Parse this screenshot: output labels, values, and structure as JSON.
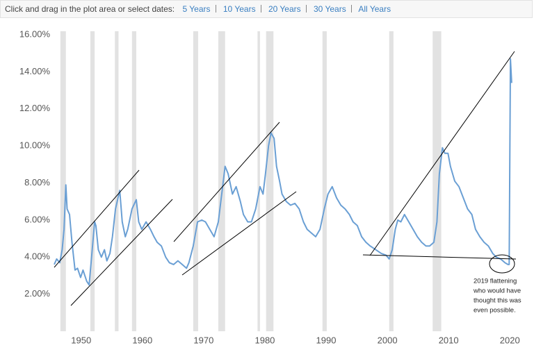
{
  "header": {
    "prompt": "Click and drag in the plot area or select dates:",
    "links": [
      "5 Years",
      "10 Years",
      "20 Years",
      "30 Years",
      "All Years"
    ]
  },
  "chart_data": {
    "type": "line",
    "color": "#6a9fd4",
    "x": [
      1945.6,
      1946.0,
      1946.5,
      1946.9,
      1947.2,
      1947.5,
      1947.7,
      1948.1,
      1948.5,
      1949.0,
      1949.4,
      1949.9,
      1950.3,
      1950.9,
      1951.3,
      1951.7,
      1952.2,
      1952.4,
      1952.8,
      1953.3,
      1953.8,
      1954.2,
      1954.7,
      1955.1,
      1955.6,
      1956.3,
      1956.7,
      1957.2,
      1957.6,
      1958.3,
      1959.0,
      1959.4,
      1959.9,
      1960.6,
      1961.3,
      1961.9,
      1962.4,
      1963.1,
      1963.8,
      1964.4,
      1965.1,
      1965.8,
      1966.5,
      1967.2,
      1967.6,
      1968.3,
      1969.0,
      1969.7,
      1970.3,
      1971.0,
      1971.7,
      1972.4,
      1973.1,
      1973.5,
      1974.0,
      1974.7,
      1975.3,
      1976.0,
      1976.5,
      1977.2,
      1977.8,
      1978.5,
      1979.2,
      1979.7,
      1980.1,
      1980.6,
      1981.0,
      1981.5,
      1981.9,
      1982.4,
      1982.8,
      1983.5,
      1984.2,
      1984.9,
      1985.6,
      1986.3,
      1986.9,
      1987.6,
      1988.3,
      1989.0,
      1989.7,
      1990.3,
      1991.0,
      1991.7,
      1992.4,
      1993.1,
      1993.8,
      1994.4,
      1995.1,
      1995.8,
      1996.5,
      1997.2,
      1998.1,
      1999.0,
      1999.8,
      2000.3,
      2000.8,
      2001.3,
      2001.7,
      2002.2,
      2002.8,
      2003.5,
      2004.2,
      2004.9,
      2005.6,
      2006.3,
      2006.9,
      2007.6,
      2008.1,
      2008.5,
      2009.0,
      2009.4,
      2009.9,
      2010.3,
      2011.0,
      2011.7,
      2012.4,
      2013.1,
      2013.8,
      2014.4,
      2015.1,
      2015.8,
      2016.5,
      2017.2,
      2017.8,
      2018.5,
      2019.2,
      2019.7,
      2019.9,
      2020.1,
      2020.3
    ],
    "values": [
      3.6,
      3.9,
      3.7,
      4.4,
      5.5,
      7.9,
      6.6,
      6.3,
      4.8,
      3.3,
      3.4,
      2.9,
      3.3,
      2.7,
      2.5,
      4.0,
      5.9,
      5.7,
      4.4,
      4.0,
      4.4,
      3.8,
      4.2,
      5.1,
      6.6,
      7.6,
      5.9,
      5.1,
      5.5,
      6.6,
      7.1,
      5.9,
      5.5,
      5.9,
      5.5,
      5.1,
      4.8,
      4.6,
      4.0,
      3.7,
      3.6,
      3.8,
      3.6,
      3.4,
      3.7,
      4.6,
      5.9,
      6.0,
      5.9,
      5.5,
      5.1,
      5.9,
      7.8,
      8.9,
      8.5,
      7.4,
      7.8,
      7.0,
      6.3,
      5.9,
      5.9,
      6.6,
      7.8,
      7.4,
      8.5,
      10.0,
      10.7,
      10.4,
      8.9,
      8.1,
      7.4,
      7.0,
      6.8,
      6.9,
      6.6,
      5.9,
      5.5,
      5.3,
      5.1,
      5.5,
      6.6,
      7.4,
      7.8,
      7.2,
      6.8,
      6.6,
      6.3,
      5.9,
      5.7,
      5.1,
      4.8,
      4.6,
      4.4,
      4.2,
      4.1,
      3.9,
      4.4,
      5.5,
      6.0,
      5.9,
      6.3,
      5.9,
      5.5,
      5.1,
      4.8,
      4.6,
      4.6,
      4.8,
      5.9,
      8.5,
      9.9,
      9.6,
      9.6,
      8.9,
      8.1,
      7.8,
      7.2,
      6.6,
      6.3,
      5.5,
      5.1,
      4.8,
      4.6,
      4.2,
      4.0,
      3.9,
      3.7,
      3.6,
      3.6,
      14.7,
      13.4
    ],
    "recessions": [
      [
        1946.6,
        1947.5
      ],
      [
        1951.5,
        1952.2
      ],
      [
        1955.5,
        1956.1
      ],
      [
        1958.3,
        1959.0
      ],
      [
        1968.3,
        1969.1
      ],
      [
        1972.4,
        1973.5
      ],
      [
        1978.8,
        1979.2
      ],
      [
        1980.2,
        1981.4
      ],
      [
        1989.4,
        1990.1
      ],
      [
        2000.3,
        2001.0
      ],
      [
        2007.4,
        2008.8
      ]
    ],
    "recession_color": "#e2e2e2",
    "xlim": [
      1945.6,
      2022.7
    ],
    "xticks": [
      1950,
      1960,
      1970,
      1980,
      1990,
      2000,
      2010,
      2020
    ],
    "ylim": [
      0,
      16
    ],
    "yticks": [
      {
        "value": 2,
        "label": "2.00%"
      },
      {
        "value": 4,
        "label": "4.00%"
      },
      {
        "value": 6,
        "label": "6.00%"
      },
      {
        "value": 8,
        "label": "8.00%"
      },
      {
        "value": 10,
        "label": "10.00%"
      },
      {
        "value": 12,
        "label": "12.00%"
      },
      {
        "value": 14,
        "label": "14.00%"
      },
      {
        "value": 16,
        "label": "16.00%"
      }
    ],
    "grid": false,
    "annotation": [
      "2019 flattening",
      "who would have",
      "thought this was",
      "even possible."
    ]
  }
}
